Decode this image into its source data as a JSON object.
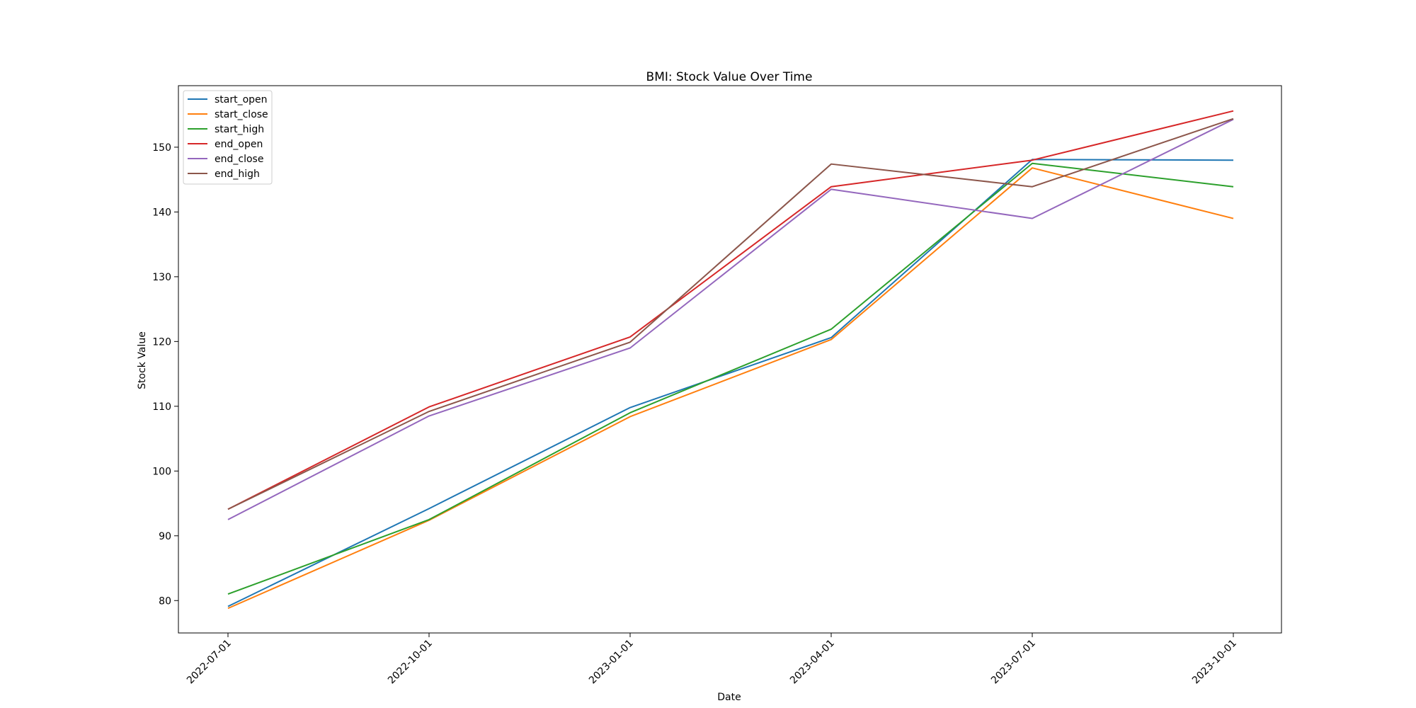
{
  "chart_data": {
    "type": "line",
    "title": "BMI: Stock Value Over Time",
    "xlabel": "Date",
    "ylabel": "Stock Value",
    "categories": [
      "2022-07-01",
      "2022-10-01",
      "2023-01-01",
      "2023-04-01",
      "2023-07-01",
      "2023-10-01"
    ],
    "ylim": [
      75,
      159.5
    ],
    "yticks": [
      80,
      90,
      100,
      110,
      120,
      130,
      140,
      150
    ],
    "legend_position": "top-left",
    "grid": false,
    "series": [
      {
        "name": "start_open",
        "color": "#1f77b4",
        "values": [
          79.1,
          94.2,
          109.8,
          120.6,
          148.1,
          148.0
        ]
      },
      {
        "name": "start_close",
        "color": "#ff7f0e",
        "values": [
          78.8,
          92.4,
          108.4,
          120.3,
          146.8,
          139.0
        ]
      },
      {
        "name": "start_high",
        "color": "#2ca02c",
        "values": [
          81.0,
          92.5,
          109.0,
          121.9,
          147.5,
          143.9
        ]
      },
      {
        "name": "end_open",
        "color": "#d62728",
        "values": [
          94.1,
          109.9,
          120.7,
          143.9,
          148.0,
          155.6
        ]
      },
      {
        "name": "end_close",
        "color": "#9467bd",
        "values": [
          92.5,
          108.5,
          119.0,
          143.5,
          139.0,
          154.3
        ]
      },
      {
        "name": "end_high",
        "color": "#8c564b",
        "values": [
          94.1,
          109.2,
          119.9,
          147.4,
          143.9,
          154.4
        ]
      }
    ]
  }
}
